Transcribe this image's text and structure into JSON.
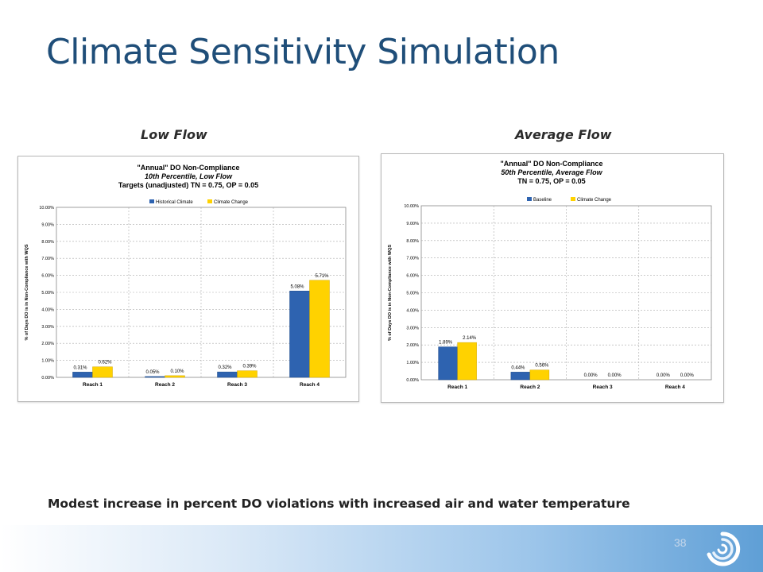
{
  "slide": {
    "title": "Climate Sensitivity Simulation",
    "caption": "Modest increase in percent DO violations with increased air and water temperature",
    "page_number": "38",
    "panel_labels": [
      "Low Flow",
      "Average Flow"
    ]
  },
  "colors": {
    "title": "#1f4e79",
    "series1": "#2e63b0",
    "series2": "#ffd200"
  },
  "chart_data": [
    {
      "type": "bar",
      "title_lines": [
        "\"Annual\" DO Non-Compliance",
        "10th Percentile, Low Flow",
        "Targets (unadjusted) TN = 0.75, OP = 0.05"
      ],
      "ylabel": "% of Days DO is in Non-Compliance with WQS",
      "xlabel": "",
      "ylim": [
        0,
        10
      ],
      "yticks": [
        "0.00%",
        "1.00%",
        "2.00%",
        "3.00%",
        "4.00%",
        "5.00%",
        "6.00%",
        "7.00%",
        "8.00%",
        "9.00%",
        "10.00%"
      ],
      "categories": [
        "Reach 1",
        "Reach 2",
        "Reach 3",
        "Reach 4"
      ],
      "series": [
        {
          "name": "Historical Climate",
          "values": [
            0.31,
            0.05,
            0.32,
            5.08
          ],
          "labels": [
            "0.31%",
            "0.05%",
            "0.32%",
            "5.08%"
          ]
        },
        {
          "name": "Climate Change",
          "values": [
            0.62,
            0.1,
            0.39,
            5.71
          ],
          "labels": [
            "0.62%",
            "0.10%",
            "0.39%",
            "5.71%"
          ]
        }
      ],
      "grid": true,
      "legend": "top-center"
    },
    {
      "type": "bar",
      "title_lines": [
        "\"Annual\" DO Non-Compliance",
        "50th Percentile, Average Flow",
        "TN = 0.75, OP = 0.05"
      ],
      "ylabel": "% of Days DO is in Non-Compliance with WQS",
      "xlabel": "",
      "ylim": [
        0,
        10
      ],
      "yticks": [
        "0.00%",
        "1.00%",
        "2.00%",
        "3.00%",
        "4.00%",
        "5.00%",
        "6.00%",
        "7.00%",
        "8.00%",
        "9.00%",
        "10.00%"
      ],
      "categories": [
        "Reach 1",
        "Reach 2",
        "Reach 3",
        "Reach 4"
      ],
      "series": [
        {
          "name": "Baseline",
          "values": [
            1.89,
            0.44,
            0.0,
            0.0
          ],
          "labels": [
            "1.89%",
            "0.44%",
            "0.00%",
            "0.00%"
          ]
        },
        {
          "name": "Climate Change",
          "values": [
            2.14,
            0.56,
            0.0,
            0.0
          ],
          "labels": [
            "2.14%",
            "0.56%",
            "0.00%",
            "0.00%"
          ]
        }
      ],
      "grid": true,
      "legend": "top-center"
    }
  ]
}
